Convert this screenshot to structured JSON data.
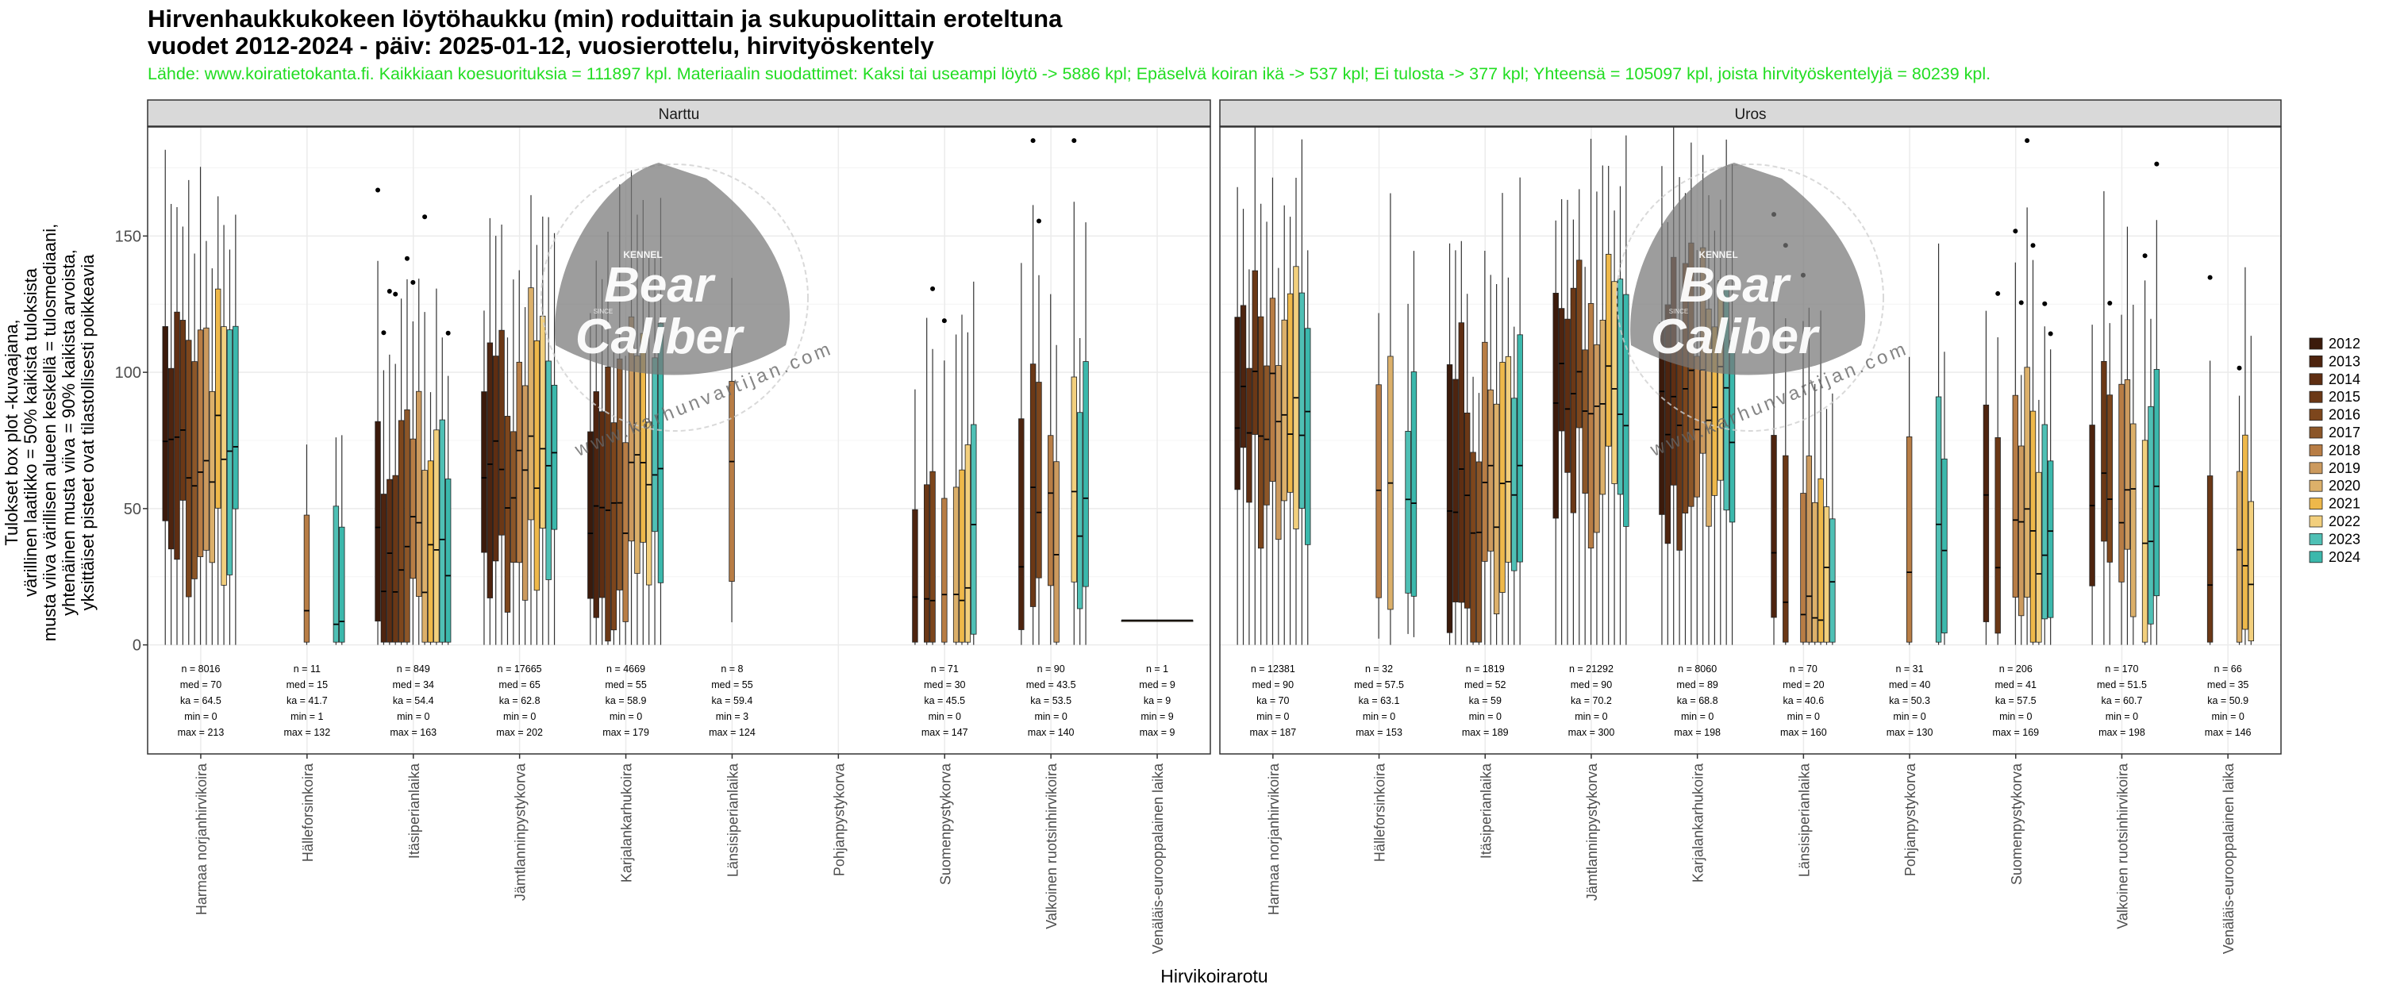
{
  "chart_data": {
    "type": "boxplot",
    "title_line1": "Hirvenhaukkukokeen löytöhaukku (min) roduittain ja sukupuolittain eroteltuna",
    "title_line2": "vuodet 2012-2024 - päiv: 2025-01-12, vuosierottelu, hirvityöskentely",
    "subtitle": "Lähde: www.koiratietokanta.fi. Kaikkiaan koesuorituksia = 111897 kpl. Materiaalin suodattimet: Kaksi tai useampi löytö -> 5886 kpl; Epäselvä koiran ikä -> 537 kpl; Ei tulosta -> 377 kpl; Yhteensä = 105097 kpl, joista hirvityöskentelyjä = 80239 kpl.",
    "ylabel_lines": [
      "Tulokset box plot -kuvaajana,",
      "värillinen laatikko = 50% kaikista tuloksista",
      "musta viiva värillisen alueen keskellä = tulosmediaani,",
      "yhtenäinen musta viiva = 90% kaikista arvoista,",
      "yksittäiset pisteet ovat tilastollisesti poikkeavia"
    ],
    "xlabel": "Hirvikoirarotu",
    "ylim": [
      -40,
      190
    ],
    "yticks": [
      0,
      50,
      100,
      150
    ],
    "years": [
      "2012",
      "2013",
      "2014",
      "2015",
      "2016",
      "2017",
      "2018",
      "2019",
      "2020",
      "2021",
      "2022",
      "2023",
      "2024"
    ],
    "year_colors": [
      "#3b1a0b",
      "#4e240f",
      "#5f2e12",
      "#6b3816",
      "#7d461c",
      "#8c5628",
      "#b87d45",
      "#cc9a5e",
      "#dcb06a",
      "#eeb84a",
      "#f2cf7d",
      "#4fc0b5",
      "#3bb8ac"
    ],
    "breeds": [
      "Harmaa norjanhirvikoira",
      "Hälleforsinkoira",
      "Itäsiperianlaika",
      "Jämtlanninpystykorva",
      "Karjalankarhukoira",
      "Länsisiperianlaika",
      "Pohjanpystykorva",
      "Suomenpystykorva",
      "Valkoinen ruotsinhirvikoira",
      "Venäläis-eurooppalainen laika"
    ],
    "facets": [
      {
        "name": "Narttu",
        "stats": [
          [
            "n = 8016",
            "med = 70",
            "ka = 64.5",
            "min = 0",
            "max = 213"
          ],
          [
            "n = 11",
            "med = 15",
            "ka = 41.7",
            "min = 1",
            "max = 132"
          ],
          [
            "n = 849",
            "med = 34",
            "ka = 54.4",
            "min = 0",
            "max = 163"
          ],
          [
            "n = 17665",
            "med = 65",
            "ka = 62.8",
            "min = 0",
            "max = 202"
          ],
          [
            "n = 4669",
            "med = 55",
            "ka = 58.9",
            "min = 0",
            "max = 179"
          ],
          [
            "n = 8",
            "med = 55",
            "ka = 59.4",
            "min = 3",
            "max = 124"
          ],
          null,
          [
            "n = 71",
            "med = 30",
            "ka = 45.5",
            "min = 0",
            "max = 147"
          ],
          [
            "n = 90",
            "med = 43.5",
            "ka = 53.5",
            "min = 0",
            "max = 140"
          ],
          [
            "n = 1",
            "med = 9",
            "ka = 9",
            "min = 9",
            "max = 9"
          ]
        ]
      },
      {
        "name": "Uros",
        "stats": [
          [
            "n = 12381",
            "med = 90",
            "ka = 70",
            "min = 0",
            "max = 187"
          ],
          [
            "n = 32",
            "med = 57.5",
            "ka = 63.1",
            "min = 0",
            "max = 153"
          ],
          [
            "n = 1819",
            "med = 52",
            "ka = 59",
            "min = 0",
            "max = 189"
          ],
          [
            "n = 21292",
            "med = 90",
            "ka = 70.2",
            "min = 0",
            "max = 300"
          ],
          [
            "n = 8060",
            "med = 89",
            "ka = 68.8",
            "min = 0",
            "max = 198"
          ],
          [
            "n = 70",
            "med = 20",
            "ka = 40.6",
            "min = 0",
            "max = 160"
          ],
          [
            "n = 31",
            "med = 40",
            "ka = 50.3",
            "min = 0",
            "max = 130"
          ],
          [
            "n = 206",
            "med = 41",
            "ka = 57.5",
            "min = 0",
            "max = 169"
          ],
          [
            "n = 170",
            "med = 51.5",
            "ka = 60.7",
            "min = 0",
            "max = 198"
          ],
          [
            "n = 66",
            "med = 35",
            "ka = 50.9",
            "min = 0",
            "max = 146"
          ]
        ]
      }
    ],
    "watermark": {
      "line1": "Bear",
      "line2": "Caliber",
      "url": "www.karhunvartijan.com",
      "kennel": "KENNEL",
      "badge": "SINCE"
    }
  }
}
